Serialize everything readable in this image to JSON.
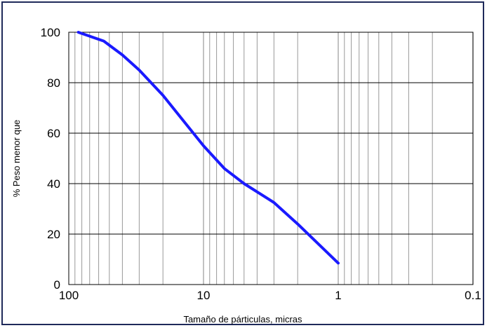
{
  "chart_data": {
    "type": "line",
    "title": "",
    "xlabel": "Tamaño de párticulas,  micras",
    "ylabel": "% Peso menor que",
    "x_scale": "log",
    "x_reversed": true,
    "xlim": [
      100,
      0.1
    ],
    "ylim": [
      0,
      100
    ],
    "x_tick_labels": [
      "100",
      "10",
      "1",
      "0.1"
    ],
    "x_tick_values": [
      100,
      10,
      1,
      0.1
    ],
    "y_tick_labels": [
      "0",
      "20",
      "40",
      "60",
      "80",
      "100"
    ],
    "y_tick_values": [
      0,
      20,
      40,
      60,
      80,
      100
    ],
    "grid": true,
    "line_color": "#1a1aff",
    "series": [
      {
        "x": [
          85,
          75,
          55,
          40,
          30,
          20,
          10,
          7,
          5,
          3,
          2,
          1
        ],
        "y": [
          100,
          99,
          96.5,
          91,
          85,
          75,
          55,
          46,
          40,
          32.5,
          24,
          8.5
        ]
      }
    ]
  }
}
